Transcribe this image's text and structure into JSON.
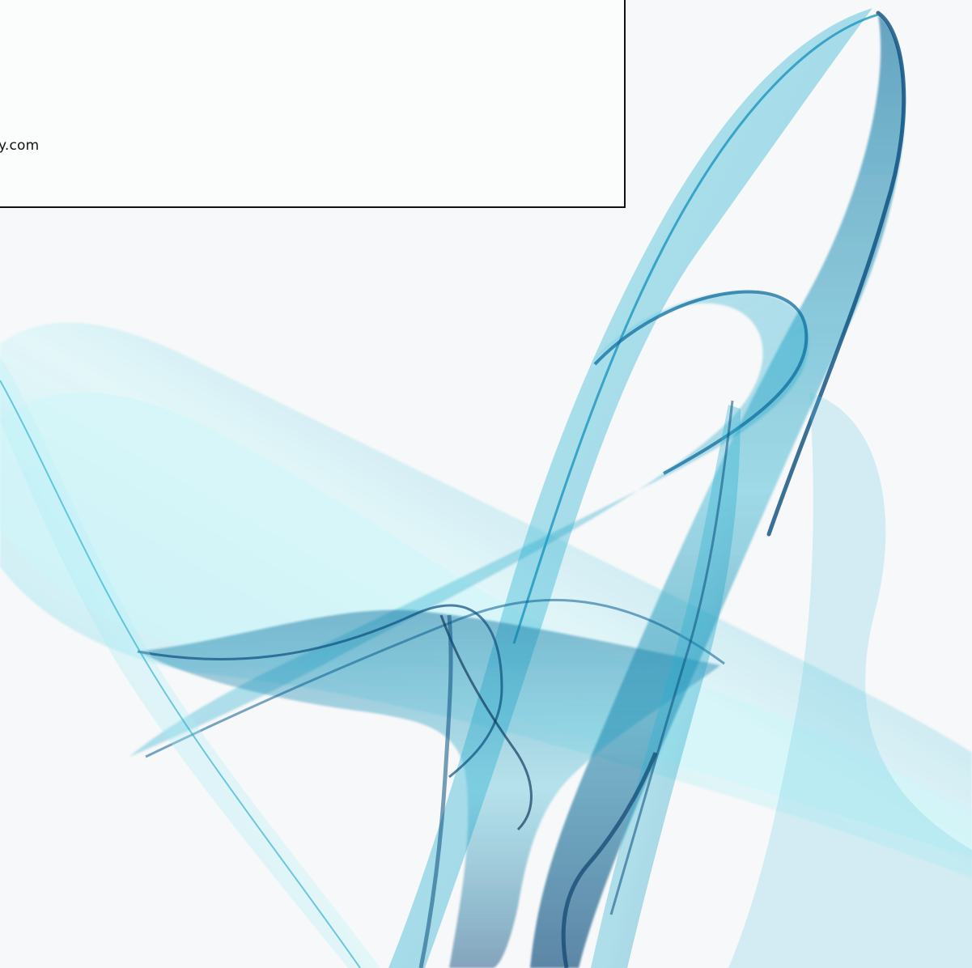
{
  "image": {
    "description": "",
    "visible_text": "y.com",
    "colors": {
      "background": "#f7f8f9",
      "ribbon_light": "#63cfe2",
      "ribbon_mid": "#159dc2",
      "ribbon_dark": "#0b4e7d",
      "border": "#111111"
    }
  }
}
